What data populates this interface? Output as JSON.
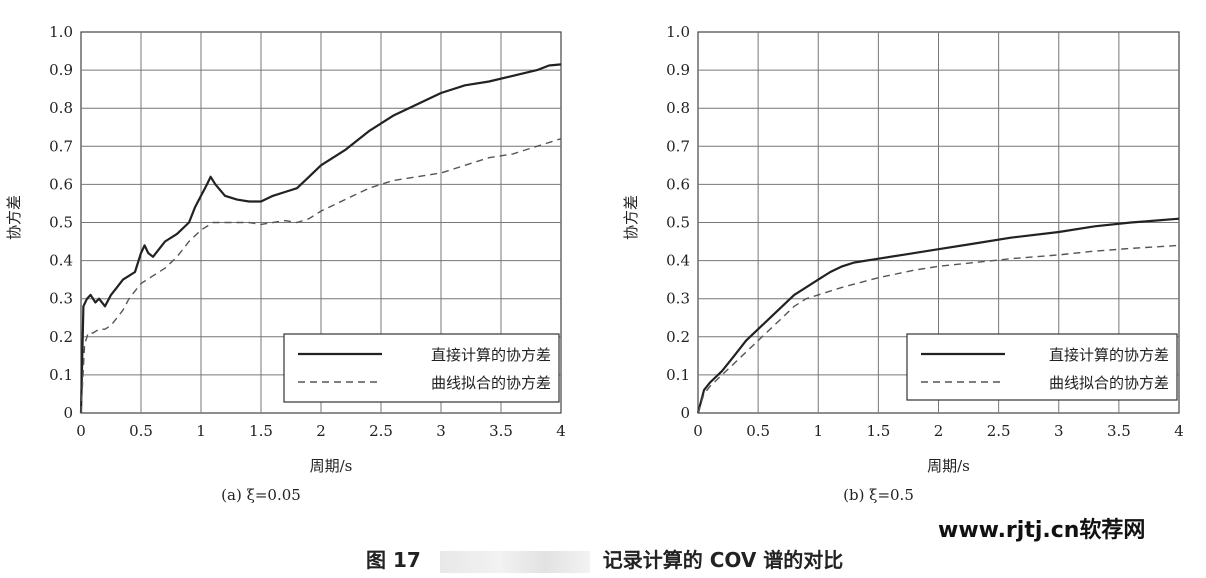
{
  "figure": {
    "number": "图 17",
    "caption_rest": "记录计算的 COV 谱的对比"
  },
  "watermark": "www.rjtj.cn软荐网",
  "chart_data": [
    {
      "type": "line",
      "subtitle": "(a) ξ=0.05",
      "xlabel": "周期/s",
      "ylabel": "协方差",
      "xlim": [
        0,
        4
      ],
      "ylim": [
        0,
        1.0
      ],
      "xticks": [
        "0",
        "0.5",
        "1",
        "1.5",
        "2",
        "2.5",
        "3",
        "3.5",
        "4"
      ],
      "yticks": [
        "0",
        "0.1",
        "0.2",
        "0.3",
        "0.4",
        "0.5",
        "0.6",
        "0.7",
        "0.8",
        "0.9",
        "1.0"
      ],
      "grid": true,
      "legend_position": "bottom-right",
      "series": [
        {
          "name": "直接计算的协方差",
          "style": "solid",
          "x": [
            0,
            0.02,
            0.05,
            0.08,
            0.12,
            0.15,
            0.2,
            0.25,
            0.3,
            0.35,
            0.4,
            0.45,
            0.5,
            0.53,
            0.56,
            0.6,
            0.65,
            0.7,
            0.8,
            0.9,
            0.95,
            1.0,
            1.05,
            1.08,
            1.12,
            1.2,
            1.3,
            1.4,
            1.5,
            1.6,
            1.7,
            1.8,
            1.9,
            2.0,
            2.2,
            2.4,
            2.6,
            2.8,
            3.0,
            3.2,
            3.4,
            3.6,
            3.8,
            3.9,
            4.0
          ],
          "y": [
            0.0,
            0.28,
            0.3,
            0.31,
            0.29,
            0.3,
            0.28,
            0.31,
            0.33,
            0.35,
            0.36,
            0.37,
            0.42,
            0.44,
            0.42,
            0.41,
            0.43,
            0.45,
            0.47,
            0.5,
            0.54,
            0.57,
            0.6,
            0.62,
            0.6,
            0.57,
            0.56,
            0.555,
            0.555,
            0.57,
            0.58,
            0.59,
            0.62,
            0.65,
            0.69,
            0.74,
            0.78,
            0.81,
            0.84,
            0.86,
            0.87,
            0.885,
            0.9,
            0.912,
            0.915
          ]
        },
        {
          "name": "曲线拟合的协方差",
          "style": "dashed",
          "x": [
            0,
            0.03,
            0.06,
            0.1,
            0.15,
            0.2,
            0.25,
            0.3,
            0.35,
            0.4,
            0.45,
            0.5,
            0.55,
            0.6,
            0.7,
            0.8,
            0.9,
            1.0,
            1.1,
            1.2,
            1.3,
            1.4,
            1.5,
            1.6,
            1.7,
            1.8,
            1.9,
            2.0,
            2.2,
            2.4,
            2.6,
            2.8,
            3.0,
            3.2,
            3.4,
            3.6,
            3.8,
            4.0
          ],
          "y": [
            0.0,
            0.18,
            0.21,
            0.21,
            0.22,
            0.22,
            0.23,
            0.25,
            0.27,
            0.3,
            0.32,
            0.34,
            0.35,
            0.36,
            0.38,
            0.41,
            0.45,
            0.48,
            0.5,
            0.5,
            0.5,
            0.5,
            0.495,
            0.5,
            0.505,
            0.5,
            0.51,
            0.53,
            0.56,
            0.59,
            0.61,
            0.62,
            0.63,
            0.65,
            0.67,
            0.68,
            0.7,
            0.72
          ]
        }
      ]
    },
    {
      "type": "line",
      "subtitle": "(b) ξ=0.5",
      "xlabel": "周期/s",
      "ylabel": "协方差",
      "xlim": [
        0,
        4
      ],
      "ylim": [
        0,
        1.0
      ],
      "xticks": [
        "0",
        "0.5",
        "1",
        "1.5",
        "2",
        "2.5",
        "3",
        "3.5",
        "4"
      ],
      "yticks": [
        "0",
        "0.1",
        "0.2",
        "0.3",
        "0.4",
        "0.5",
        "0.6",
        "0.7",
        "0.8",
        "0.9",
        "1.0"
      ],
      "grid": true,
      "legend_position": "bottom-right",
      "series": [
        {
          "name": "直接计算的协方差",
          "style": "solid",
          "x": [
            0,
            0.05,
            0.1,
            0.2,
            0.3,
            0.4,
            0.5,
            0.6,
            0.7,
            0.8,
            0.9,
            1.0,
            1.1,
            1.2,
            1.3,
            1.5,
            1.7,
            2.0,
            2.3,
            2.6,
            3.0,
            3.3,
            3.6,
            3.8,
            4.0
          ],
          "y": [
            0.0,
            0.06,
            0.08,
            0.11,
            0.15,
            0.19,
            0.22,
            0.25,
            0.28,
            0.31,
            0.33,
            0.35,
            0.37,
            0.385,
            0.395,
            0.405,
            0.415,
            0.43,
            0.445,
            0.46,
            0.475,
            0.49,
            0.5,
            0.505,
            0.51
          ]
        },
        {
          "name": "曲线拟合的协方差",
          "style": "dashed",
          "x": [
            0,
            0.05,
            0.1,
            0.2,
            0.3,
            0.4,
            0.5,
            0.6,
            0.7,
            0.8,
            0.9,
            1.0,
            1.2,
            1.5,
            1.8,
            2.0,
            2.3,
            2.6,
            3.0,
            3.3,
            3.6,
            4.0
          ],
          "y": [
            0.0,
            0.05,
            0.07,
            0.1,
            0.13,
            0.16,
            0.19,
            0.22,
            0.25,
            0.28,
            0.3,
            0.31,
            0.33,
            0.355,
            0.375,
            0.385,
            0.395,
            0.405,
            0.415,
            0.425,
            0.432,
            0.44
          ]
        }
      ]
    }
  ]
}
